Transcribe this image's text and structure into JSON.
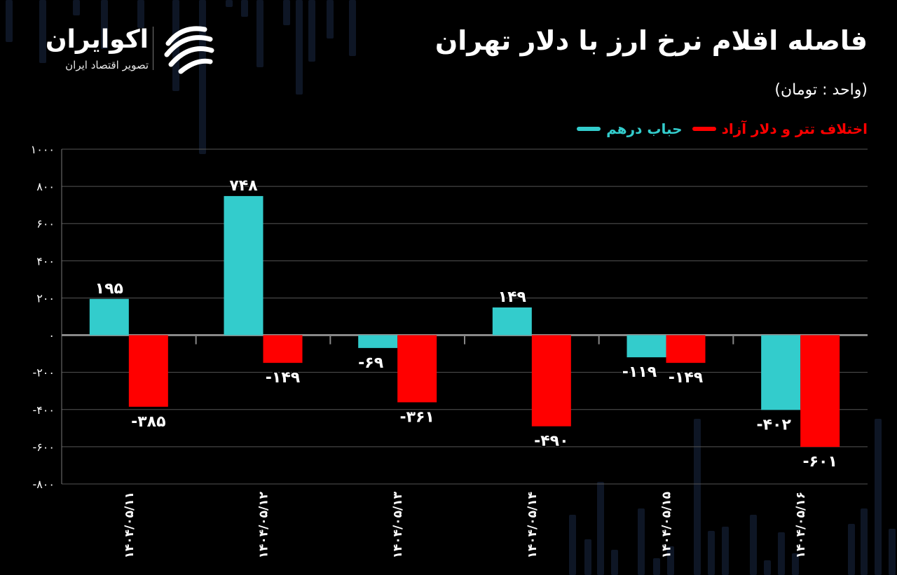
{
  "logo": {
    "name": "اکوایران",
    "subtitle": "تصویر اقتصاد ایران"
  },
  "header": {
    "title": "فاصله اقلام نرخ ارز با دلار تهران",
    "unit": "(واحد : تومان)"
  },
  "colors": {
    "background": "#000000",
    "series_dirham": "#33CCCC",
    "series_tether": "#FF0000",
    "grid": "#555555",
    "text": "#FFFFFF"
  },
  "chart_data": {
    "type": "bar",
    "title": "فاصله اقلام نرخ ارز با دلار تهران",
    "unit": "(واحد : تومان)",
    "categories": [
      "۱۴۰۴/۰۵/۱۱",
      "۱۴۰۴/۰۵/۱۲",
      "۱۴۰۴/۰۵/۱۳",
      "۱۴۰۴/۰۵/۱۴",
      "۱۴۰۴/۰۵/۱۵",
      "۱۴۰۴/۰۵/۱۶"
    ],
    "series": [
      {
        "name": "حباب درهم",
        "color": "#33CCCC",
        "values": [
          195,
          748,
          -69,
          149,
          -119,
          -402
        ],
        "labels": [
          "۱۹۵",
          "۷۴۸",
          "-۶۹",
          "۱۴۹",
          "-۱۱۹",
          "-۴۰۲"
        ]
      },
      {
        "name": "اختلاف تتر و دلار آزاد",
        "color": "#FF0000",
        "values": [
          -385,
          -149,
          -361,
          -490,
          -149,
          -601
        ],
        "labels": [
          "-۳۸۵",
          "-۱۴۹",
          "-۳۶۱",
          "-۴۹۰",
          "-۱۴۹",
          "-۶۰۱"
        ]
      }
    ],
    "ylim": [
      -800,
      1000
    ],
    "yticks": [
      1000,
      800,
      600,
      400,
      200,
      0,
      -200,
      -400,
      -600,
      -800
    ],
    "ytick_labels": [
      "۱۰۰۰",
      "۸۰۰",
      "۶۰۰",
      "۴۰۰",
      "۲۰۰",
      "۰",
      "-۲۰۰",
      "-۴۰۰",
      "-۶۰۰",
      "-۸۰۰"
    ],
    "grid": true,
    "legend_position": "top-right"
  }
}
